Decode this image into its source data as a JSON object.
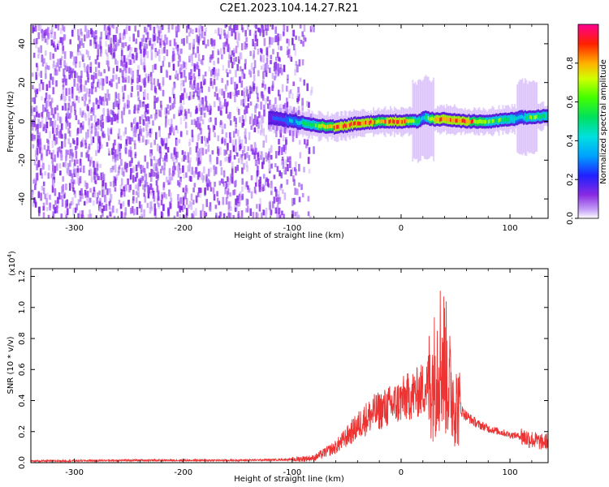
{
  "title": "C2E1.2023.104.14.27.R21",
  "chart_data": [
    {
      "type": "heatmap",
      "xlabel": "Height of straight line (km)",
      "ylabel": "Frequency (Hz)",
      "xlim": [
        -340,
        135
      ],
      "ylim": [
        -50,
        50
      ],
      "xticks": [
        -300,
        -200,
        -100,
        0,
        100
      ],
      "yticks": [
        -40,
        -20,
        0,
        20,
        40
      ],
      "colorbar": {
        "label": "Normalized spectral amplitude",
        "ticks": [
          "0.0",
          "0.2",
          "0.4",
          "0.6",
          "0.8"
        ],
        "range": [
          0,
          1
        ]
      },
      "signal_track": {
        "description_x": [
          -120,
          -100,
          -80,
          -60,
          -40,
          -20,
          0,
          15,
          20,
          30,
          40,
          60,
          80,
          100,
          110,
          120,
          135
        ],
        "frequency_hz": [
          2,
          0,
          -2,
          -3,
          -1,
          0,
          0,
          0,
          2,
          1,
          1,
          0,
          0,
          1,
          2,
          2,
          3
        ],
        "peak_amplitude": [
          0.3,
          0.45,
          0.7,
          0.9,
          0.95,
          0.85,
          0.95,
          0.6,
          0.5,
          0.9,
          0.95,
          0.9,
          0.7,
          0.6,
          0.5,
          0.7,
          0.6
        ]
      },
      "noise_region_x": [
        -340,
        -80
      ],
      "grid": false
    },
    {
      "type": "line",
      "xlabel": "Height of straight line (km)",
      "ylabel": "SNR (10 * v/v)",
      "y_multiplier_label": "(x10",
      "y_multiplier_exp": "4",
      "xlim": [
        -340,
        135
      ],
      "ylim": [
        0,
        1.25
      ],
      "xticks": [
        -300,
        -200,
        -100,
        0,
        100
      ],
      "yticks": [
        "0.0",
        "0.2",
        "0.4",
        "0.6",
        "0.8",
        "1.0",
        "1.2"
      ],
      "series": [
        {
          "color": "#ee3333",
          "x": [
            -340,
            -250,
            -150,
            -100,
            -80,
            -60,
            -45,
            -35,
            -25,
            -15,
            -5,
            5,
            15,
            25,
            30,
            35,
            40,
            45,
            50,
            60,
            70,
            80,
            90,
            100,
            110,
            115,
            120,
            125,
            130,
            135
          ],
          "y": [
            0.01,
            0.015,
            0.015,
            0.02,
            0.03,
            0.1,
            0.2,
            0.27,
            0.32,
            0.35,
            0.38,
            0.42,
            0.45,
            0.5,
            0.55,
            0.7,
            0.65,
            0.48,
            0.38,
            0.3,
            0.25,
            0.22,
            0.2,
            0.18,
            0.17,
            0.16,
            0.15,
            0.14,
            0.13,
            0.14
          ]
        }
      ],
      "grid": false
    }
  ]
}
